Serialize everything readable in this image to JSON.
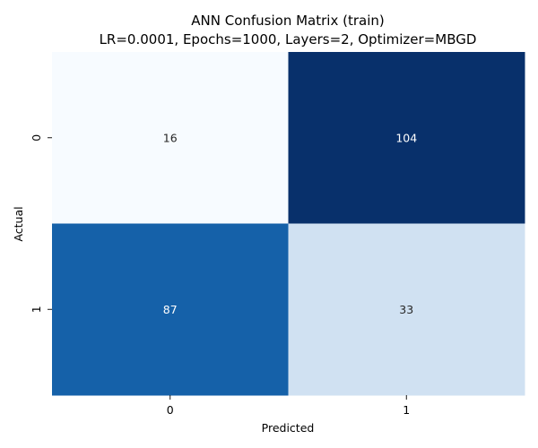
{
  "chart_data": {
    "type": "heatmap",
    "title": "ANN Confusion Matrix (train)",
    "subtitle": "LR=0.0001, Epochs=1000, Layers=2, Optimizer=MBGD",
    "xlabel": "Predicted",
    "ylabel": "Actual",
    "x_categories": [
      "0",
      "1"
    ],
    "y_categories": [
      "0",
      "1"
    ],
    "values": [
      [
        16,
        104
      ],
      [
        87,
        33
      ]
    ],
    "colormap": "Blues",
    "colorbar": false,
    "cell_colors": [
      [
        "#f7fbff",
        "#08306b"
      ],
      [
        "#1561a9",
        "#d0e1f2"
      ]
    ],
    "label_colors": [
      [
        "#262626",
        "#ffffff"
      ],
      [
        "#ffffff",
        "#262626"
      ]
    ]
  }
}
